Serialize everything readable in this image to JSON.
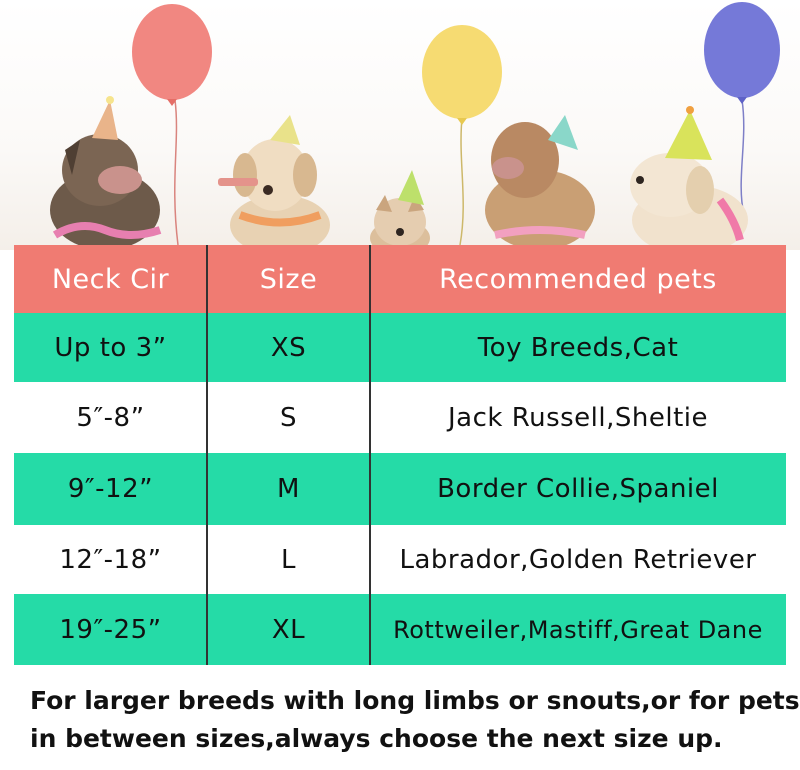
{
  "header": {
    "neck_label": "Neck Cir",
    "size_label": "Size",
    "pets_label": "Recommended pets"
  },
  "rows": [
    {
      "neck": "Up to 3”",
      "size": "XS",
      "pets": "Toy Breeds,Cat"
    },
    {
      "neck": "5″-8”",
      "size": "S",
      "pets": "Jack Russell,Sheltie"
    },
    {
      "neck": "9″-12”",
      "size": "M",
      "pets": "Border Collie,Spaniel"
    },
    {
      "neck": "12″-18”",
      "size": "L",
      "pets": "Labrador,Golden Retriever"
    },
    {
      "neck": "19″-25”",
      "size": "XL",
      "pets": "Rottweiler,Mastiff,Great Dane"
    }
  ],
  "note": {
    "line1": "For larger breeds with long limbs or snouts,or for pets",
    "line2": "in between sizes,always choose the next  size up."
  },
  "colors": {
    "header_bg": "#f07b72",
    "row_green": "#25dba7",
    "row_white": "#ffffff",
    "balloon_red": "#f07a73",
    "balloon_yellow": "#f5d96a",
    "balloon_purple": "#6e72d6"
  }
}
